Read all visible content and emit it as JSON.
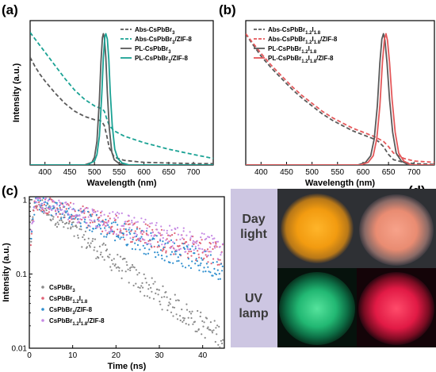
{
  "panels": {
    "a": "(a)",
    "b": "(b)",
    "c": "(c)",
    "d": "(d)"
  },
  "photo_labels": {
    "day_line1": "Day",
    "day_line2": "light",
    "uv_line1": "UV",
    "uv_line2": "lamp"
  },
  "colors": {
    "gray": "#5a5a5a",
    "teal": "#1aa294",
    "red": "#e4585a",
    "c_gray": "#8a8a8a",
    "c_red": "#e06377",
    "c_blue": "#2f8fcf",
    "c_violet": "#c68ae4",
    "photo_bg": "#cdc6e2"
  },
  "chart_data": [
    {
      "type": "line",
      "panel": "(a)",
      "xlabel": "Wavelength (nm)",
      "ylabel": "Intensity (a.u.)",
      "xlim": [
        370,
        740
      ],
      "ylim": [
        0,
        1.1
      ],
      "xticks": [
        400,
        450,
        500,
        550,
        600,
        650,
        700
      ],
      "legend_position": "top-right",
      "series": [
        {
          "name": "Abs-CsPbBr3",
          "name_main": "Abs-CsPbBr",
          "name_sub": "3",
          "name_after": "",
          "style": "dashed",
          "color": "#5a5a5a",
          "x": [
            370,
            380,
            390,
            400,
            420,
            440,
            460,
            480,
            500,
            510,
            515,
            520,
            525,
            530,
            540,
            560,
            600,
            650,
            700,
            740
          ],
          "y": [
            0.82,
            0.75,
            0.69,
            0.64,
            0.55,
            0.47,
            0.41,
            0.37,
            0.345,
            0.34,
            0.33,
            0.3,
            0.22,
            0.13,
            0.06,
            0.035,
            0.02,
            0.015,
            0.01,
            0.01
          ]
        },
        {
          "name": "Abs-CsPbBr3/ZIF-8",
          "name_main": "Abs-CsPbBr",
          "name_sub": "3",
          "name_after": "/ZIF-8",
          "style": "dashed",
          "color": "#1aa294",
          "x": [
            370,
            380,
            400,
            420,
            440,
            460,
            480,
            500,
            510,
            515,
            520,
            525,
            530,
            540,
            560,
            600,
            650,
            700,
            740
          ],
          "y": [
            1.01,
            0.96,
            0.86,
            0.76,
            0.66,
            0.57,
            0.5,
            0.45,
            0.435,
            0.43,
            0.41,
            0.35,
            0.3,
            0.26,
            0.22,
            0.17,
            0.12,
            0.08,
            0.05
          ]
        },
        {
          "name": "PL-CsPbBr3",
          "name_main": "PL-CsPbBr",
          "name_sub": "3",
          "name_after": "",
          "style": "solid",
          "color": "#5a5a5a",
          "x": [
            370,
            480,
            495,
            500,
            505,
            510,
            513,
            516,
            518,
            520,
            523,
            526,
            530,
            535,
            540,
            550,
            565,
            600,
            740
          ],
          "y": [
            0,
            0,
            0.02,
            0.06,
            0.18,
            0.5,
            0.78,
            0.97,
            1.0,
            0.97,
            0.82,
            0.55,
            0.28,
            0.1,
            0.04,
            0.01,
            0,
            0,
            0
          ]
        },
        {
          "name": "PL-CsPbBr3/ZIF-8",
          "name_main": "PL-CsPbBr",
          "name_sub": "3",
          "name_after": "/ZIF-8",
          "style": "solid",
          "color": "#1aa294",
          "x": [
            370,
            485,
            500,
            505,
            510,
            515,
            518,
            521,
            523,
            526,
            529,
            532,
            536,
            541,
            547,
            556,
            570,
            600,
            740
          ],
          "y": [
            0,
            0,
            0.03,
            0.08,
            0.22,
            0.55,
            0.82,
            0.98,
            1.0,
            0.96,
            0.8,
            0.55,
            0.3,
            0.12,
            0.05,
            0.015,
            0,
            0,
            0
          ]
        }
      ]
    },
    {
      "type": "line",
      "panel": "(b)",
      "xlabel": "Wavelength (nm)",
      "ylabel": "",
      "xlim": [
        370,
        740
      ],
      "ylim": [
        0,
        1.1
      ],
      "xticks": [
        400,
        450,
        500,
        550,
        600,
        650,
        700
      ],
      "legend_position": "top-right",
      "series": [
        {
          "name": "Abs-CsPbBr1.2I1.8",
          "name_main": "Abs-CsPbBr",
          "name_sub": "1.2",
          "name_mid": "I",
          "name_sub2": "1.8",
          "name_after": "",
          "style": "dashed",
          "color": "#5a5a5a",
          "x": [
            370,
            380,
            400,
            420,
            440,
            460,
            480,
            500,
            520,
            540,
            560,
            580,
            600,
            620,
            630,
            640,
            650,
            660,
            680,
            700,
            740
          ],
          "y": [
            1.0,
            0.94,
            0.83,
            0.74,
            0.66,
            0.58,
            0.51,
            0.45,
            0.39,
            0.34,
            0.3,
            0.26,
            0.23,
            0.2,
            0.18,
            0.14,
            0.08,
            0.04,
            0.02,
            0.01,
            0.005
          ]
        },
        {
          "name": "Abs-CsPbBr1.2I1.8/ZIF-8",
          "name_main": "Abs-CsPbBr",
          "name_sub": "1.2",
          "name_mid": "I",
          "name_sub2": "1.8",
          "name_after": "/ZIF-8",
          "style": "dashed",
          "color": "#e4585a",
          "x": [
            370,
            380,
            400,
            420,
            440,
            460,
            480,
            500,
            520,
            540,
            560,
            580,
            600,
            620,
            640,
            650,
            660,
            680,
            700,
            740
          ],
          "y": [
            1.0,
            0.95,
            0.85,
            0.76,
            0.68,
            0.6,
            0.53,
            0.47,
            0.41,
            0.36,
            0.32,
            0.28,
            0.25,
            0.22,
            0.18,
            0.14,
            0.09,
            0.05,
            0.03,
            0.02
          ]
        },
        {
          "name": "PL-CsPbBr1.2I1.8",
          "name_main": "PL-CsPbBr",
          "name_sub": "1.2",
          "name_mid": "I",
          "name_sub2": "1.8",
          "name_after": "",
          "style": "solid",
          "color": "#5a5a5a",
          "x": [
            370,
            590,
            605,
            615,
            622,
            628,
            633,
            637,
            640,
            643,
            647,
            652,
            658,
            665,
            675,
            690,
            740
          ],
          "y": [
            0,
            0,
            0.02,
            0.07,
            0.2,
            0.45,
            0.78,
            0.96,
            1.0,
            0.95,
            0.78,
            0.5,
            0.25,
            0.09,
            0.03,
            0,
            0
          ]
        },
        {
          "name": "PL-CsPbBr1.2I1.8/ZIF-8",
          "name_main": "PL-CsPbBr",
          "name_sub": "1.2",
          "name_mid": "I",
          "name_sub2": "1.8",
          "name_after": "/ZIF-8",
          "style": "solid",
          "color": "#e4585a",
          "x": [
            370,
            595,
            610,
            620,
            627,
            633,
            638,
            642,
            645,
            648,
            652,
            657,
            663,
            670,
            680,
            695,
            740
          ],
          "y": [
            0,
            0,
            0.02,
            0.07,
            0.2,
            0.45,
            0.78,
            0.96,
            1.0,
            0.95,
            0.78,
            0.5,
            0.25,
            0.09,
            0.03,
            0,
            0
          ]
        }
      ]
    },
    {
      "type": "scatter",
      "panel": "(c)",
      "xlabel": "Time (ns)",
      "ylabel": "Intensity (a.u.)",
      "xlim": [
        0,
        45
      ],
      "ylim": [
        0.01,
        1.1
      ],
      "yscale": "log",
      "xticks": [
        0,
        10,
        20,
        30,
        40
      ],
      "yticks": [
        0.01,
        0.1,
        1
      ],
      "ytick_labels": [
        "0.01",
        "0.1",
        "1"
      ],
      "legend_position": "bottom-left",
      "series": [
        {
          "name": "CsPbBr3",
          "name_main": "CsPbBr",
          "name_sub": "3",
          "name_after": "",
          "color": "#8a8a8a",
          "rise_ns": 1.5,
          "decay_per_ns": 0.105,
          "floor": 0.004
        },
        {
          "name": "CsPbBr1.2I1.8",
          "name_main": "CsPbBr",
          "name_sub": "1.2",
          "name_mid": "I",
          "name_sub2": "1.8",
          "name_after": "",
          "color": "#e06377",
          "rise_ns": 1.5,
          "decay_per_ns": 0.045,
          "floor": 0.05
        },
        {
          "name": "CsPbBr3/ZIF-8",
          "name_main": "CsPbBr",
          "name_sub": "3",
          "name_after": "/ZIF-8",
          "color": "#2f8fcf",
          "rise_ns": 1.5,
          "decay_per_ns": 0.052,
          "floor": 0.02
        },
        {
          "name": "CsPbBr1.2I1.8/ZIF-8",
          "name_main": "CsPbBr",
          "name_sub": "1.2",
          "name_mid": "I",
          "name_sub2": "1.8",
          "name_after": "/ZIF-8",
          "color": "#c68ae4",
          "rise_ns": 1.5,
          "decay_per_ns": 0.04,
          "floor": 0.06
        }
      ]
    }
  ]
}
